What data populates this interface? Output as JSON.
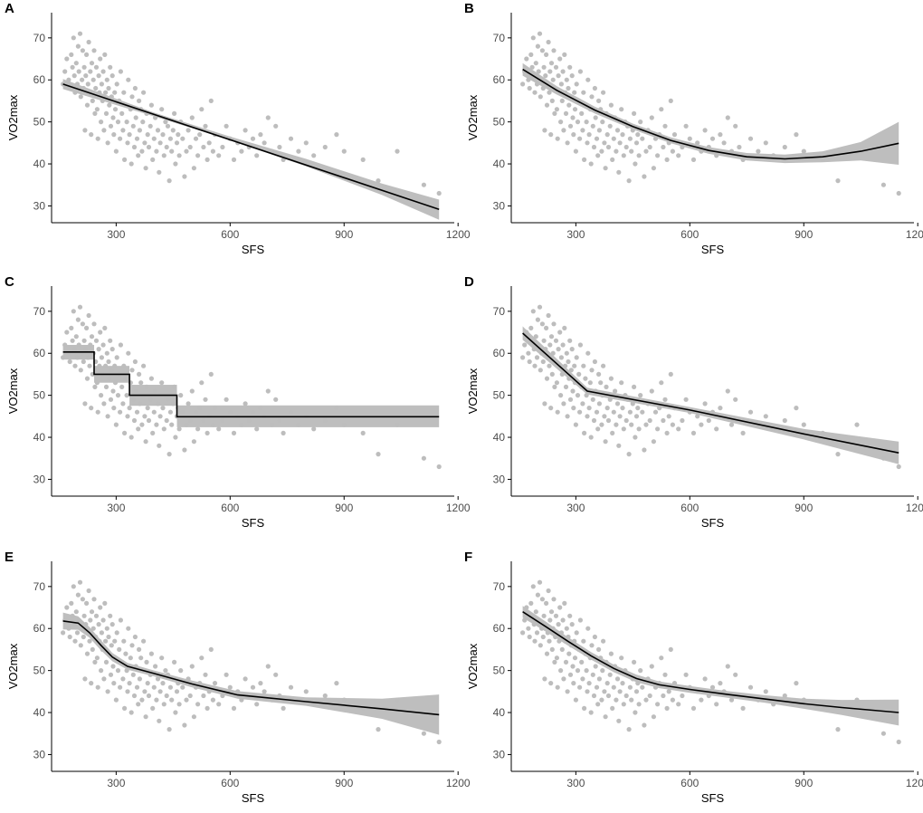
{
  "colors": {
    "points": "#bdbdbd",
    "fit_line": "#000000",
    "ribbon": "#a8a8a8",
    "axis": "#000000",
    "tick_text": "#4d4d4d"
  },
  "chart_data": [
    {
      "panel": "A",
      "type": "scatter",
      "xlabel": "SFS",
      "ylabel": "VO2max",
      "xlim": [
        130,
        1190
      ],
      "ylim": [
        26,
        76
      ],
      "x_ticks": [
        300,
        600,
        900,
        1200
      ],
      "y_ticks": [
        30,
        40,
        50,
        60,
        70
      ],
      "grid": false,
      "fit": {
        "x": [
          160,
          1150
        ],
        "y": [
          59,
          29.2
        ]
      },
      "ribbon": {
        "x": [
          160,
          400,
          600,
          800,
          1000,
          1150
        ],
        "lower": [
          57.8,
          51.3,
          45.7,
          39.4,
          32.6,
          26.7
        ],
        "upper": [
          60.2,
          52.2,
          46.5,
          41.2,
          35.3,
          31.5
        ]
      }
    },
    {
      "panel": "B",
      "type": "scatter",
      "xlabel": "SFS",
      "ylabel": "VO2max",
      "xlim": [
        130,
        1190
      ],
      "ylim": [
        26,
        76
      ],
      "x_ticks": [
        300,
        600,
        900,
        1200
      ],
      "y_ticks": [
        30,
        40,
        50,
        60,
        70
      ],
      "grid": false,
      "fit": {
        "x": [
          160,
          250,
          350,
          450,
          550,
          650,
          750,
          850,
          950,
          1050,
          1150
        ],
        "y": [
          62.5,
          57.5,
          52.8,
          48.9,
          45.6,
          43.2,
          41.7,
          41.2,
          41.7,
          43.0,
          44.9
        ]
      },
      "ribbon": {
        "x": [
          160,
          250,
          350,
          450,
          550,
          650,
          750,
          850,
          950,
          1050,
          1150
        ],
        "lower": [
          61.0,
          56.5,
          52.0,
          48.2,
          44.9,
          42.4,
          40.8,
          40.2,
          40.4,
          40.8,
          39.8
        ],
        "upper": [
          64.0,
          58.5,
          53.6,
          49.6,
          46.3,
          44.0,
          42.6,
          42.2,
          43.0,
          45.2,
          50.0
        ]
      }
    },
    {
      "panel": "C",
      "type": "scatter",
      "xlabel": "SFS",
      "ylabel": "VO2max",
      "xlim": [
        130,
        1190
      ],
      "ylim": [
        26,
        76
      ],
      "x_ticks": [
        300,
        600,
        900,
        1200
      ],
      "y_ticks": [
        30,
        40,
        50,
        60,
        70
      ],
      "grid": false,
      "step_fit": {
        "breaks": [
          160,
          242,
          335,
          460,
          1150
        ],
        "levels": [
          60.3,
          55.0,
          50.0,
          44.9
        ]
      },
      "ribbon_steps": {
        "breaks": [
          160,
          242,
          335,
          460,
          1150
        ],
        "lower": [
          58.5,
          53.0,
          47.5,
          42.4
        ],
        "upper": [
          62.0,
          57.0,
          52.5,
          47.6
        ]
      }
    },
    {
      "panel": "D",
      "type": "scatter",
      "xlabel": "SFS",
      "ylabel": "VO2max",
      "xlim": [
        130,
        1190
      ],
      "ylim": [
        26,
        76
      ],
      "x_ticks": [
        300,
        600,
        900,
        1200
      ],
      "y_ticks": [
        30,
        40,
        50,
        60,
        70
      ],
      "grid": false,
      "fit": {
        "x": [
          160,
          330,
          600,
          900,
          1150
        ],
        "y": [
          64.8,
          51.0,
          46.5,
          40.8,
          36.3
        ]
      },
      "ribbon": {
        "x": [
          160,
          330,
          600,
          900,
          1150
        ],
        "lower": [
          63.2,
          50.2,
          45.8,
          39.5,
          33.6
        ],
        "upper": [
          66.4,
          51.8,
          47.2,
          42.0,
          39.0
        ]
      }
    },
    {
      "panel": "E",
      "type": "scatter",
      "xlabel": "SFS",
      "ylabel": "VO2max",
      "xlim": [
        130,
        1190
      ],
      "ylim": [
        26,
        76
      ],
      "x_ticks": [
        300,
        600,
        900,
        1200
      ],
      "y_ticks": [
        30,
        40,
        50,
        60,
        70
      ],
      "grid": false,
      "fit": {
        "x": [
          160,
          200,
          230,
          260,
          290,
          330,
          400,
          500,
          620,
          800,
          1000,
          1150
        ],
        "y": [
          61.8,
          61.3,
          59.0,
          56.0,
          53.2,
          51.0,
          49.3,
          46.8,
          44.2,
          42.6,
          40.9,
          39.5
        ]
      },
      "ribbon": {
        "x": [
          160,
          200,
          230,
          260,
          290,
          330,
          400,
          500,
          620,
          800,
          1000,
          1150
        ],
        "lower": [
          59.8,
          59.7,
          57.8,
          54.8,
          52.2,
          50.2,
          48.6,
          46.0,
          43.3,
          41.6,
          38.5,
          34.7
        ],
        "upper": [
          63.8,
          62.9,
          60.3,
          57.2,
          54.2,
          51.8,
          50.0,
          47.6,
          45.1,
          43.6,
          43.3,
          44.3
        ]
      }
    },
    {
      "panel": "F",
      "type": "scatter",
      "xlabel": "SFS",
      "ylabel": "VO2max",
      "xlim": [
        130,
        1190
      ],
      "ylim": [
        26,
        76
      ],
      "x_ticks": [
        300,
        600,
        900,
        1200
      ],
      "y_ticks": [
        30,
        40,
        50,
        60,
        70
      ],
      "grid": false,
      "fit": {
        "x": [
          160,
          220,
          280,
          340,
          400,
          460,
          520,
          600,
          700,
          800,
          900,
          1000,
          1150
        ],
        "y": [
          64.0,
          60.5,
          56.9,
          53.5,
          50.5,
          48.1,
          46.6,
          45.5,
          44.3,
          43.2,
          42.1,
          41.2,
          40.0
        ]
      },
      "ribbon": {
        "x": [
          160,
          220,
          280,
          340,
          400,
          460,
          520,
          600,
          700,
          800,
          900,
          1000,
          1150
        ],
        "lower": [
          62.6,
          59.3,
          55.9,
          52.6,
          49.6,
          47.2,
          45.8,
          44.7,
          43.5,
          42.3,
          40.9,
          39.4,
          36.9
        ],
        "upper": [
          65.4,
          61.7,
          57.9,
          54.4,
          51.4,
          49.0,
          47.4,
          46.3,
          45.1,
          44.1,
          43.3,
          43.0,
          43.1
        ]
      }
    }
  ],
  "shared_points": {
    "note_free": true,
    "x": [
      160,
      165,
      170,
      175,
      178,
      182,
      185,
      188,
      190,
      192,
      195,
      198,
      200,
      202,
      205,
      207,
      210,
      212,
      214,
      216,
      218,
      220,
      222,
      224,
      226,
      228,
      230,
      232,
      234,
      236,
      238,
      240,
      242,
      244,
      246,
      248,
      250,
      252,
      254,
      256,
      258,
      260,
      262,
      264,
      266,
      268,
      270,
      272,
      274,
      276,
      278,
      280,
      282,
      284,
      286,
      288,
      290,
      292,
      294,
      296,
      298,
      300,
      302,
      305,
      308,
      310,
      312,
      315,
      318,
      320,
      322,
      325,
      328,
      330,
      332,
      335,
      338,
      340,
      342,
      345,
      348,
      350,
      352,
      355,
      358,
      360,
      362,
      365,
      368,
      370,
      372,
      375,
      378,
      380,
      383,
      386,
      390,
      393,
      396,
      400,
      403,
      406,
      410,
      413,
      416,
      420,
      423,
      426,
      430,
      433,
      436,
      440,
      443,
      446,
      450,
      453,
      456,
      460,
      463,
      466,
      470,
      475,
      480,
      485,
      490,
      495,
      500,
      505,
      510,
      515,
      520,
      525,
      530,
      535,
      540,
      545,
      550,
      555,
      560,
      570,
      580,
      590,
      600,
      610,
      620,
      630,
      640,
      650,
      660,
      670,
      680,
      690,
      700,
      710,
      720,
      730,
      740,
      760,
      780,
      800,
      820,
      850,
      880,
      900,
      950,
      990,
      1040,
      1110,
      1150
    ],
    "y": [
      59,
      62,
      65,
      60,
      58,
      66,
      63,
      70,
      61,
      57,
      64,
      59,
      68,
      62,
      71,
      56,
      60,
      67,
      58,
      63,
      48,
      61,
      66,
      54,
      59,
      69,
      57,
      62,
      47,
      64,
      55,
      60,
      67,
      52,
      58,
      63,
      53,
      46,
      61,
      57,
      65,
      50,
      59,
      55,
      62,
      48,
      66,
      57,
      52,
      60,
      45,
      58,
      54,
      63,
      49,
      56,
      61,
      51,
      47,
      57,
      53,
      43,
      59,
      50,
      55,
      46,
      62,
      52,
      48,
      57,
      41,
      54,
      50,
      45,
      60,
      47,
      53,
      40,
      56,
      49,
      44,
      58,
      51,
      46,
      42,
      55,
      48,
      53,
      43,
      50,
      57,
      45,
      39,
      52,
      47,
      44,
      49,
      54,
      41,
      46,
      51,
      43,
      48,
      38,
      45,
      53,
      47,
      42,
      50,
      44,
      49,
      36,
      46,
      43,
      48,
      52,
      40,
      45,
      47,
      42,
      50,
      46,
      37,
      43,
      48,
      44,
      51,
      39,
      46,
      42,
      47,
      53,
      44,
      49,
      41,
      45,
      55,
      43,
      47,
      42,
      44,
      49,
      46,
      41,
      45,
      43,
      48,
      44,
      46,
      42,
      47,
      45,
      51,
      43,
      49,
      44,
      41,
      46,
      43,
      45,
      42,
      44,
      47,
      43,
      41,
      36,
      43,
      35,
      33
    ]
  }
}
